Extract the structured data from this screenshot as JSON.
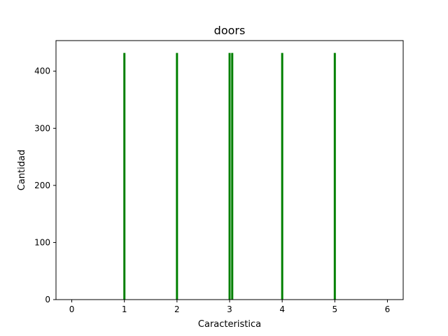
{
  "chart_data": {
    "type": "bar",
    "title": "doors",
    "xlabel": "Caracteristica",
    "ylabel": "Cantidad",
    "x": [
      1,
      2,
      3,
      3.05,
      4,
      5
    ],
    "values": [
      432,
      432,
      432,
      432,
      432,
      432
    ],
    "xlim": [
      -0.3,
      6.3
    ],
    "ylim": [
      0,
      453.6
    ],
    "xticks": [
      0,
      1,
      2,
      3,
      4,
      5,
      6
    ],
    "yticks": [
      0,
      100,
      200,
      300,
      400
    ],
    "bar_color": "#008000",
    "grid": false
  }
}
